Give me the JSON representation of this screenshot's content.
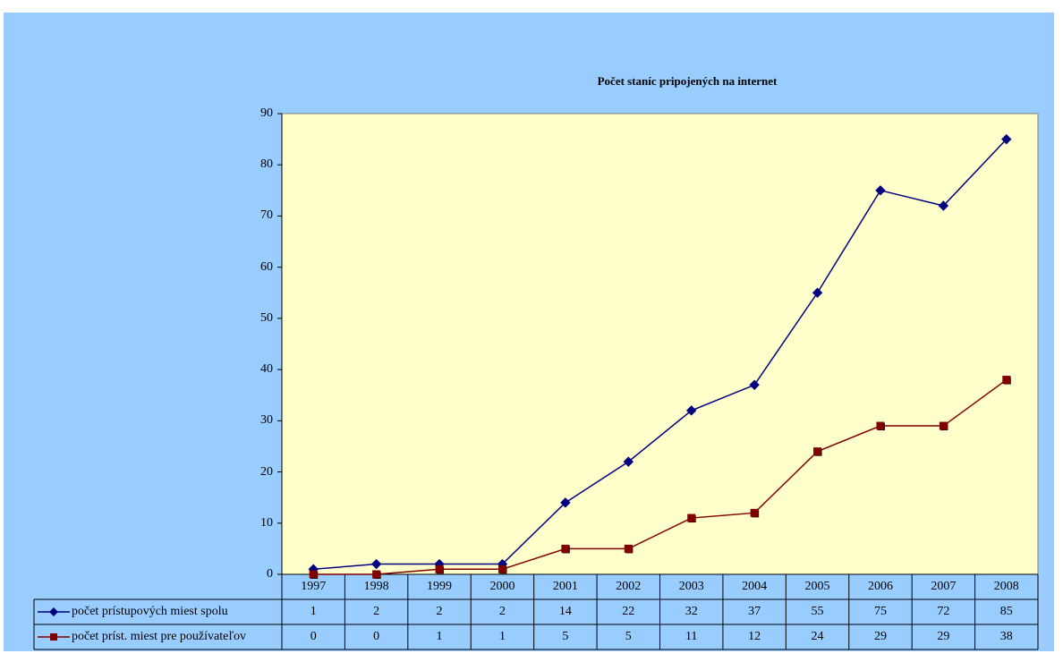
{
  "colors": {
    "background": "#99ccff",
    "plot_area": "#ffffcc",
    "series_total": "#000080",
    "series_users": "#800000"
  },
  "chart_data": {
    "type": "line",
    "title": "Počet staníc pripojených na internet",
    "xlabel": "",
    "ylabel": "",
    "x": [
      "1997",
      "1998",
      "1999",
      "2000",
      "2001",
      "2002",
      "2003",
      "2004",
      "2005",
      "2006",
      "2007",
      "2008"
    ],
    "ylim": [
      0,
      90
    ],
    "yticks": [
      0,
      10,
      20,
      30,
      40,
      50,
      60,
      70,
      80,
      90
    ],
    "grid": false,
    "legend": "data-table",
    "series": [
      {
        "name": "počet prístupových miest spolu",
        "marker": "diamond",
        "values": [
          1,
          2,
          2,
          2,
          14,
          22,
          32,
          37,
          55,
          75,
          72,
          85
        ]
      },
      {
        "name": "počet príst. miest pre používateľov",
        "marker": "square",
        "values": [
          0,
          0,
          1,
          1,
          5,
          5,
          11,
          12,
          24,
          29,
          29,
          38
        ]
      }
    ]
  }
}
